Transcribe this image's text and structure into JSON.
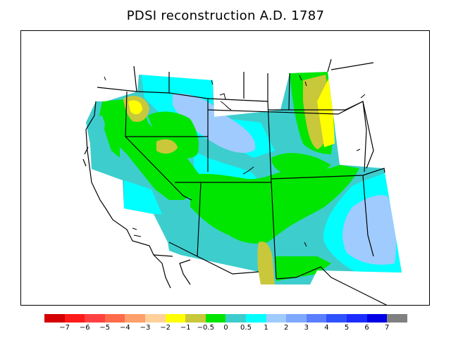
{
  "title": "PDSI reconstruction A.D. 1787",
  "legend": {
    "colors": [
      "#d40000",
      "#ff1a1a",
      "#ff4040",
      "#ff6a4a",
      "#ff9f6a",
      "#ffd09a",
      "#ffff00",
      "#c9c83a",
      "#00e600",
      "#3ecdcd",
      "#00ffff",
      "#a0cbff",
      "#7fa8ff",
      "#5a7eff",
      "#2f52ff",
      "#1a2cff",
      "#0000e6",
      "#808080"
    ],
    "ticks": [
      "−7",
      "−6",
      "−5",
      "−4",
      "−3",
      "−2",
      "−1",
      "−0.5",
      "0",
      "0.5",
      "1",
      "2",
      "3",
      "4",
      "5",
      "6",
      "7"
    ]
  },
  "map": {
    "region": "western United States",
    "layers": [
      "PDSI shading",
      "state boundaries",
      "coastline",
      "lakes"
    ]
  }
}
